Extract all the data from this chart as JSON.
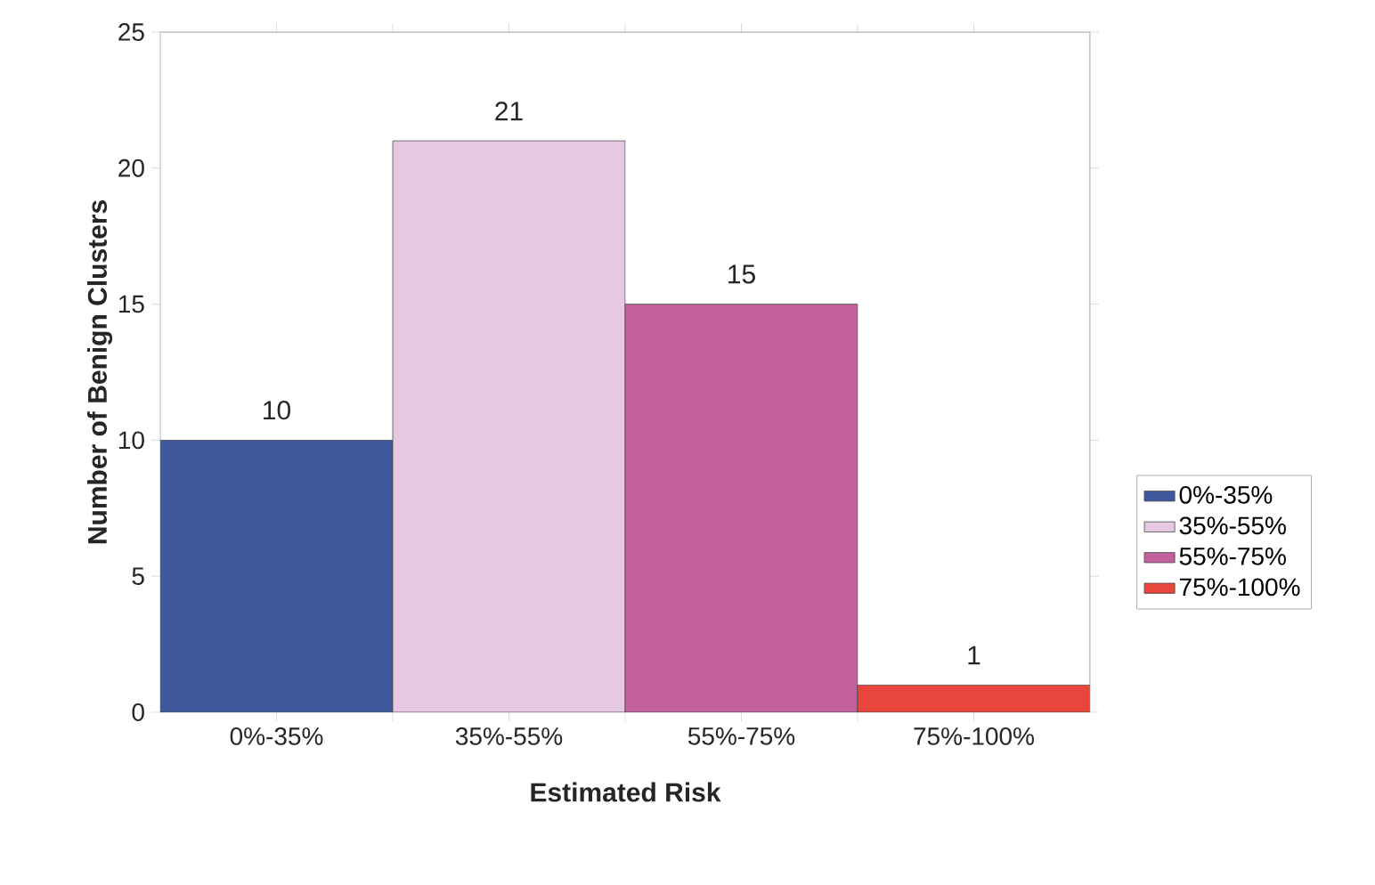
{
  "chart_data": {
    "type": "bar",
    "xlabel": "Estimated Risk",
    "ylabel": "Number of Benign Clusters",
    "categories": [
      "0%-35%",
      "35%-55%",
      "55%-75%",
      "75%-100%"
    ],
    "series": [
      {
        "name": "0%-35%",
        "color": "#3f5a9c",
        "values": [
          10,
          null,
          null,
          null
        ]
      },
      {
        "name": "35%-55%",
        "color": "#e6c8e2",
        "values": [
          null,
          21,
          null,
          null
        ]
      },
      {
        "name": "55%-75%",
        "color": "#c2619b",
        "values": [
          null,
          null,
          15,
          null
        ]
      },
      {
        "name": "75%-100%",
        "color": "#e8453c",
        "values": [
          null,
          null,
          null,
          1
        ]
      }
    ],
    "ylim": [
      0,
      25
    ],
    "yticks": [
      0,
      5,
      10,
      15,
      20,
      25
    ],
    "data_labels": true,
    "legend": "right"
  }
}
